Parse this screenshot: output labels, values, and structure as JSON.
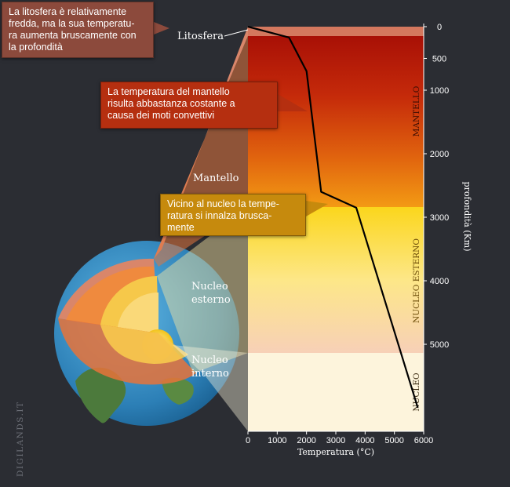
{
  "callouts": {
    "litosfera": "La litosfera è relativamente\nfredda, ma la sua temperatu-\nra aumenta bruscamente con\nla profondità",
    "mantello": "La temperatura del mantello\nrisulta abbastanza costante a\ncausa dei moti convettivi",
    "nucleo": "Vicino al nucleo la tempe-\nratura si innalza brusca-\nmente"
  },
  "labels": {
    "litosfera": "Litosfera",
    "mantello": "Mantello",
    "nucleo_esterno_line1": "Nucleo",
    "nucleo_esterno_line2": "esterno",
    "nucleo_interno_line1": "Nucleo",
    "nucleo_interno_line2": "interno"
  },
  "watermark": "DIGILANDS.IT",
  "chart_data": {
    "type": "line",
    "xlabel": "Temperatura (°C)",
    "ylabel": "profondità (Km)",
    "x_ticks": [
      0,
      1000,
      2000,
      3000,
      4000,
      5000,
      6000
    ],
    "y_ticks": [
      0,
      500,
      1000,
      2000,
      3000,
      4000,
      5000
    ],
    "xlim": [
      0,
      6000
    ],
    "ylim": [
      0,
      6370
    ],
    "y_inverted": true,
    "layers": [
      {
        "name": "MANTELLO",
        "from": 0,
        "to": 2900
      },
      {
        "name": "NUCLEO ESTERNO",
        "from": 2900,
        "to": 5150
      },
      {
        "name": "NUCLEO",
        "from": 5150,
        "to": 6370
      }
    ],
    "series": [
      {
        "x": [
          0,
          1400,
          2000,
          2500,
          3700,
          5800
        ],
        "y": [
          0,
          170,
          700,
          2600,
          2850,
          6000
        ]
      }
    ],
    "colors": {
      "line": "#000000",
      "litosfera_band": "#d4785e"
    }
  }
}
